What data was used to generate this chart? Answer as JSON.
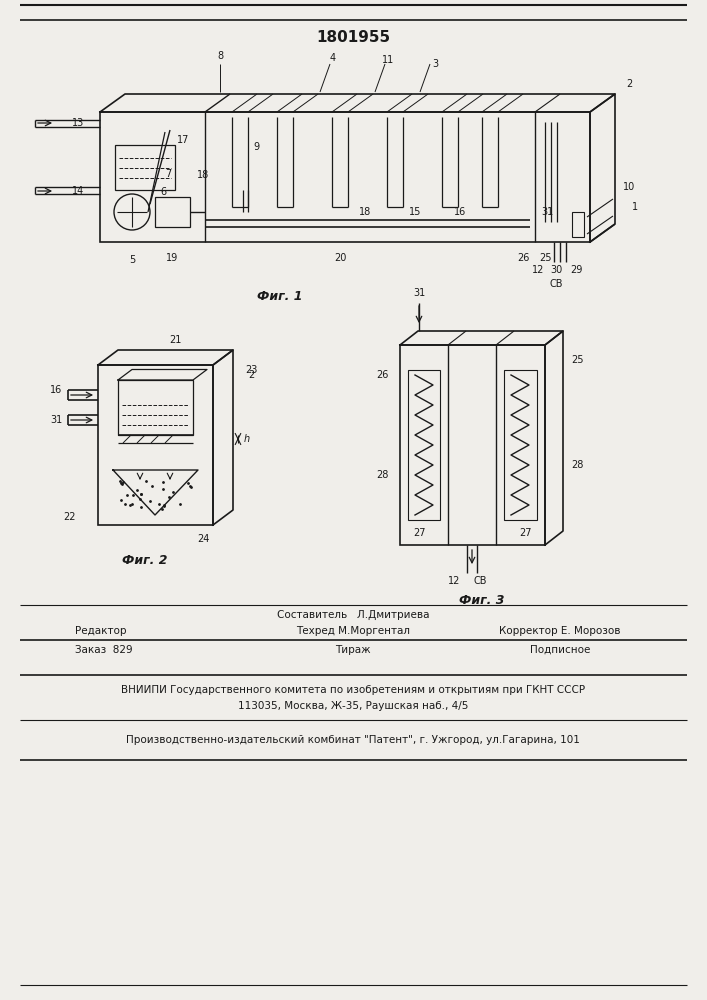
{
  "title": "1801955",
  "fig1_label": "Фиг. 1",
  "fig2_label": "Фиг. 2",
  "fig3_label": "Фиг. 3",
  "footer_line1a": "Составитель   Л.Дмитриева",
  "footer_line2_left": "Редактор",
  "footer_line2_mid": "Техред М.Моргентал",
  "footer_line2_right": "Корректор Е. Морозов",
  "footer_line3_left": "Заказ  829",
  "footer_line3_mid": "Тираж",
  "footer_line3_right": "Подписное",
  "footer_line4": "ВНИИПИ Государственного комитета по изобретениям и открытиям при ГКНТ СССР",
  "footer_line5": "113035, Москва, Ж-35, Раушская наб., 4/5",
  "footer_line6": "Производственно-издательский комбинат \"Патент\", г. Ужгород, ул.Гагарина, 101",
  "bg_color": "#f0eeea",
  "line_color": "#1a1a1a",
  "text_color": "#1a1a1a"
}
